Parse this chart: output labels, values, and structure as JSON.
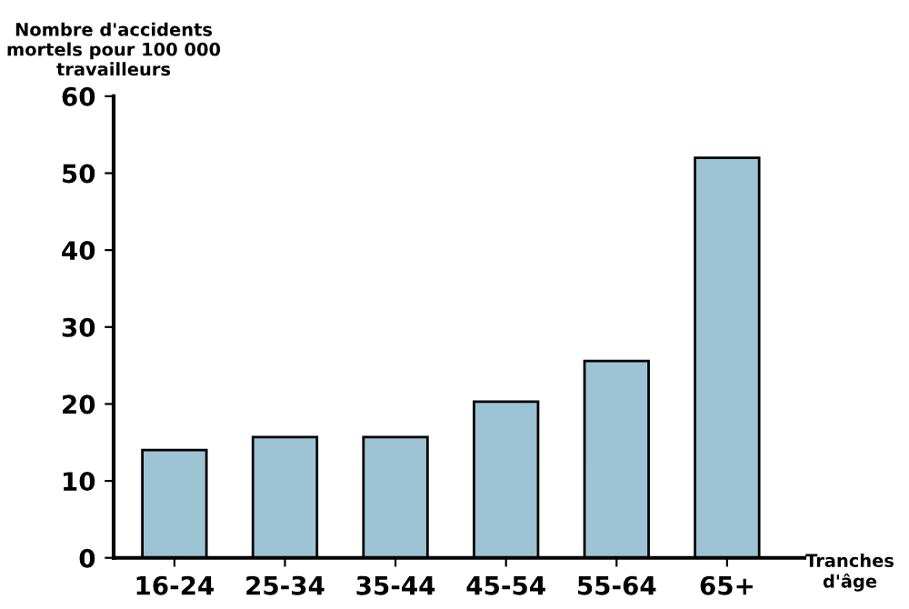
{
  "chart_data": {
    "type": "bar",
    "ylabel": "Nombre d'accidents\nmortels pour 100 000\ntravailleurs",
    "xlabel": "Tranches\nd'âge",
    "categories": [
      "16-24",
      "25-34",
      "35-44",
      "45-54",
      "55-64",
      "65+"
    ],
    "values": [
      14,
      15.7,
      15.7,
      20.3,
      25.6,
      52
    ],
    "color": "#9dc3d4",
    "ylim": [
      0,
      60
    ],
    "yticks": [
      0,
      10,
      20,
      30,
      40,
      50,
      60
    ],
    "grid": false,
    "legend": false
  }
}
